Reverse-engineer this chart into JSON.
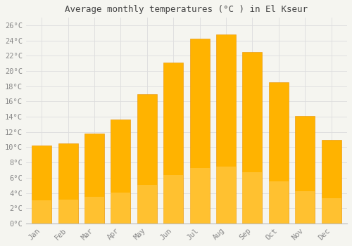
{
  "title": "Average monthly temperatures (°C ) in El Kseur",
  "months": [
    "Jan",
    "Feb",
    "Mar",
    "Apr",
    "May",
    "Jun",
    "Jul",
    "Aug",
    "Sep",
    "Oct",
    "Nov",
    "Dec"
  ],
  "values": [
    10.2,
    10.5,
    11.8,
    13.6,
    17.0,
    21.1,
    24.3,
    24.8,
    22.5,
    18.5,
    14.1,
    11.0
  ],
  "bar_color_top": "#FFB300",
  "bar_color_bottom": "#FFA500",
  "bar_edge_color": "#E89000",
  "background_color": "#F5F5F0",
  "plot_bg_color": "#F5F5F0",
  "grid_color": "#DDDDDD",
  "tick_label_color": "#888888",
  "title_color": "#444444",
  "ylim": [
    0,
    27
  ],
  "yticks": [
    0,
    2,
    4,
    6,
    8,
    10,
    12,
    14,
    16,
    18,
    20,
    22,
    24,
    26
  ],
  "bar_width": 0.75
}
